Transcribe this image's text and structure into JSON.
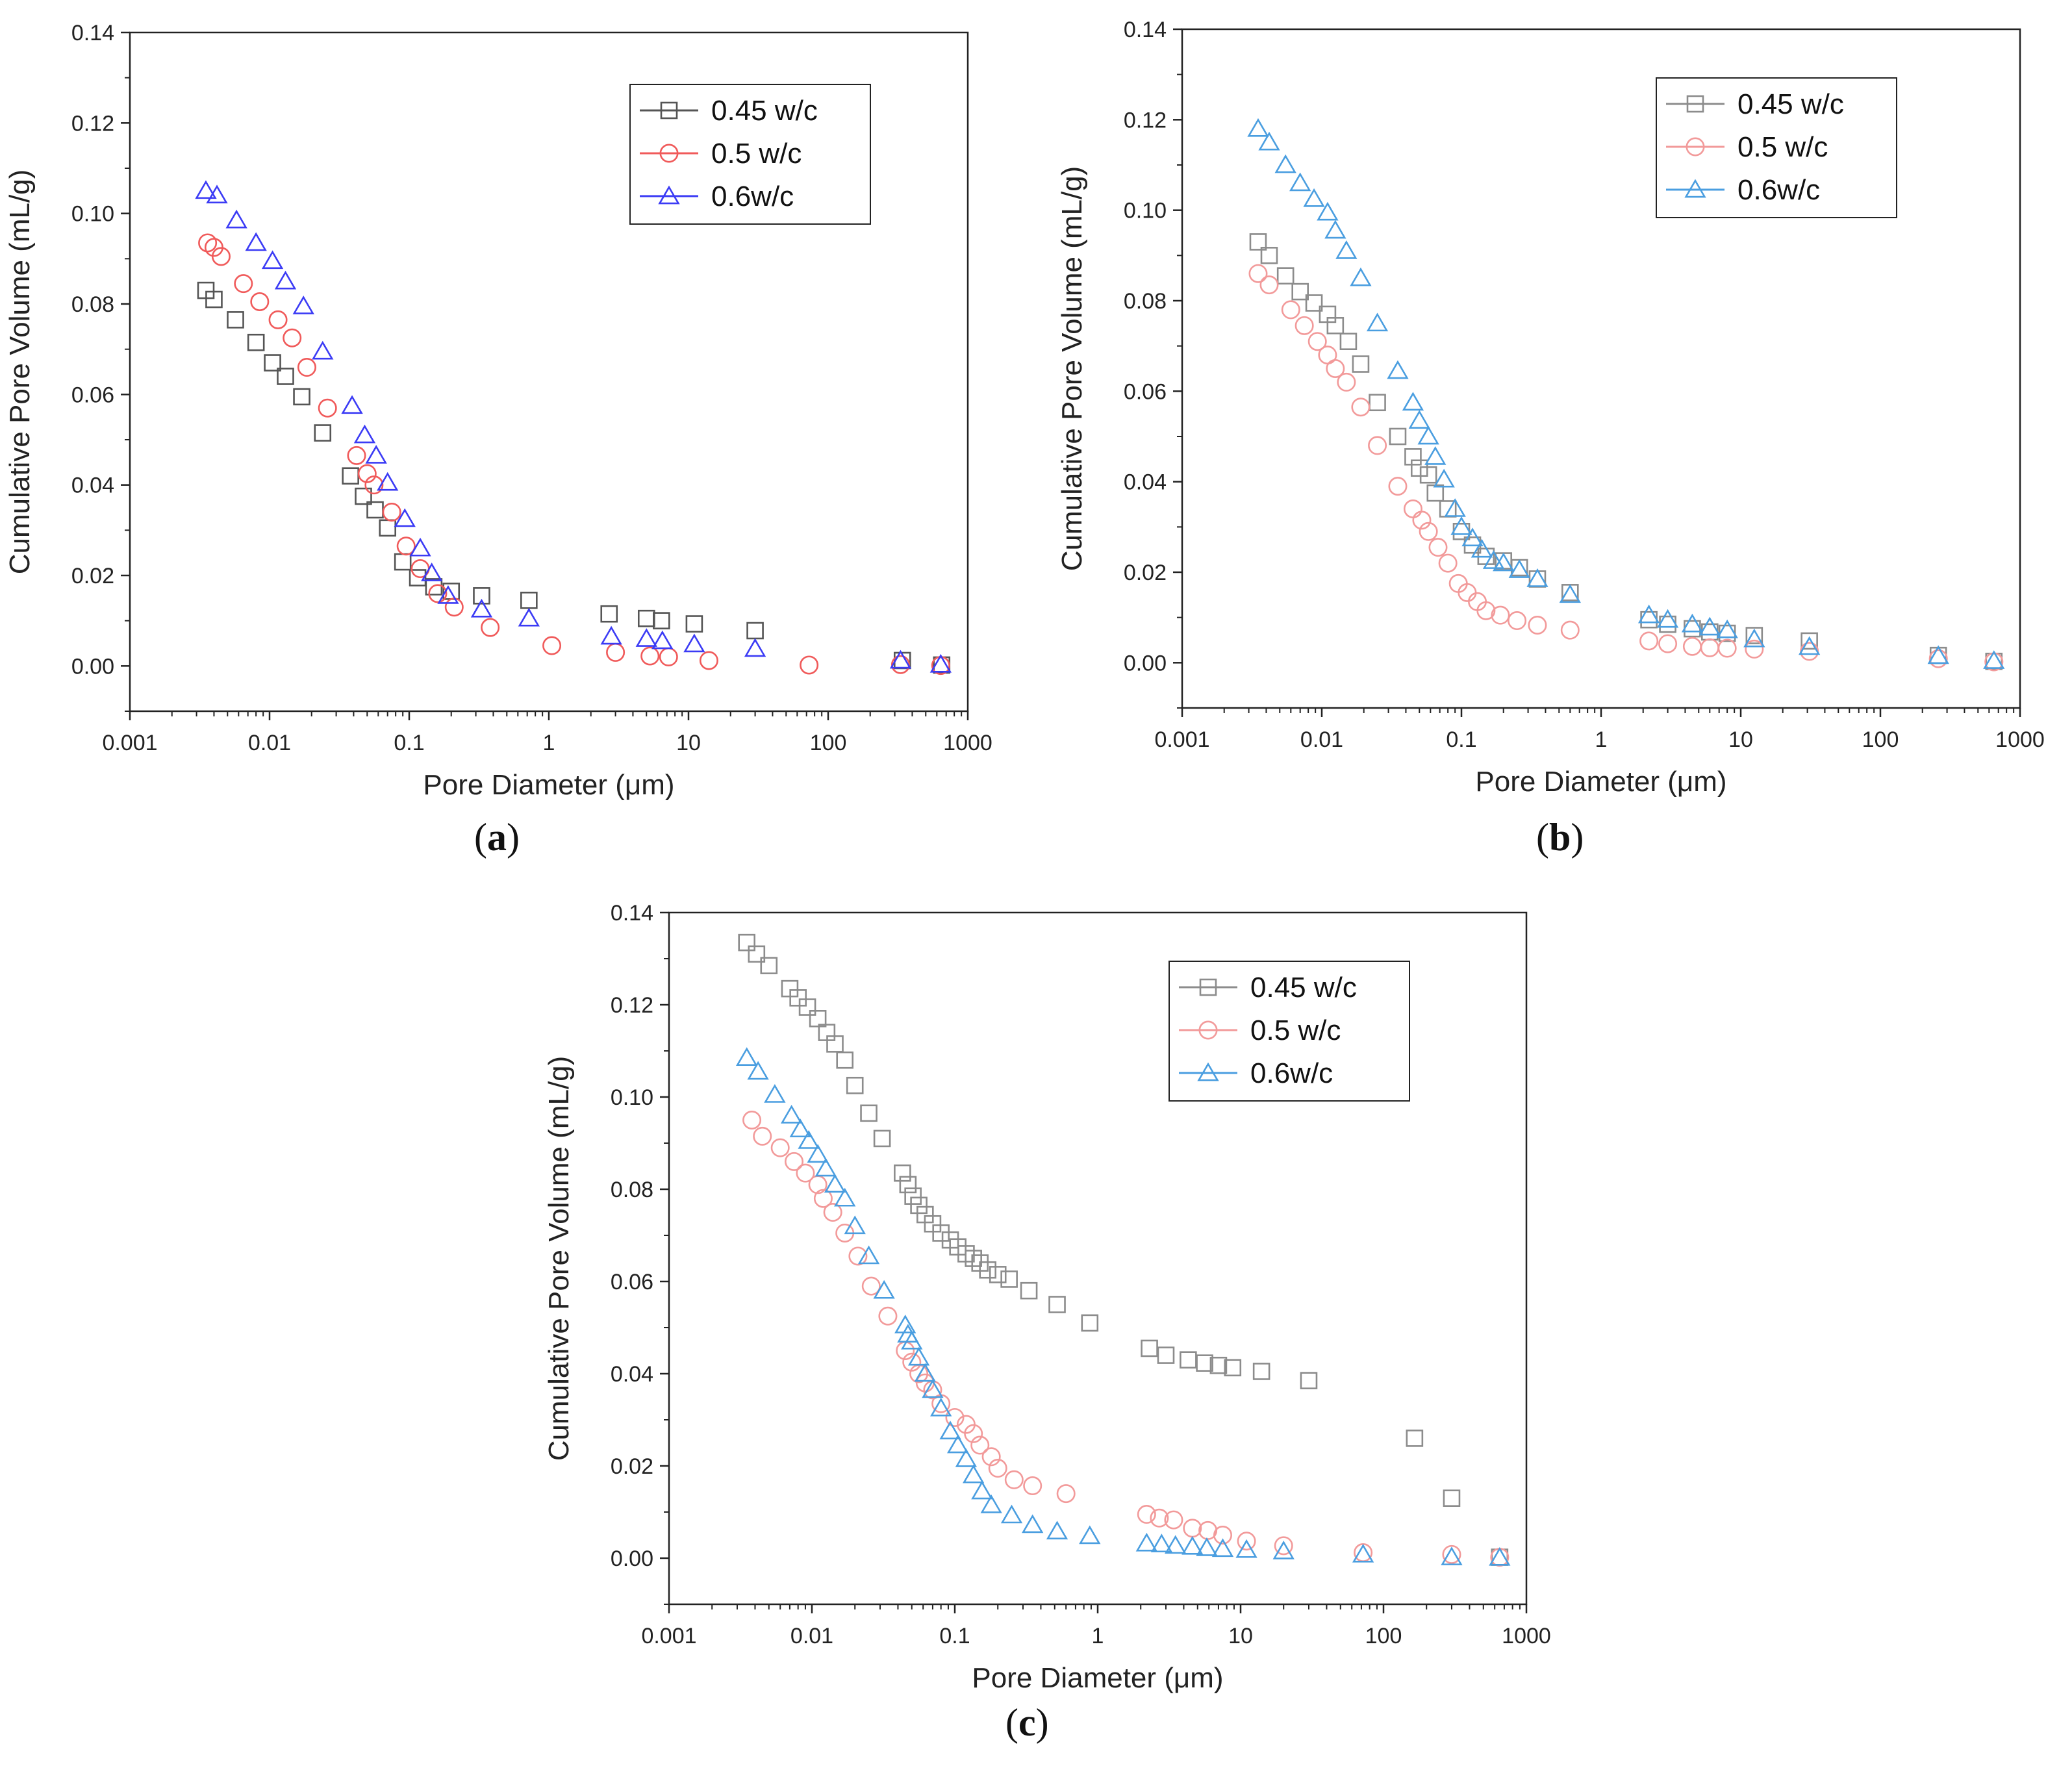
{
  "chart_data": [
    {
      "id": "a",
      "type": "scatter",
      "caption": "(a)",
      "caption_open": "(",
      "caption_letter": "a",
      "caption_close": ")",
      "xlabel": "Pore Diameter (μm)",
      "ylabel": "Cumulative Pore Volume (mL/g)",
      "xscale": "log",
      "xlim": [
        0.001,
        1000
      ],
      "ylim": [
        -0.01,
        0.14
      ],
      "xticks": [
        0.001,
        0.01,
        0.1,
        1,
        10,
        100,
        1000
      ],
      "xtick_labels": [
        "0.001",
        "0.01",
        "0.1",
        "1",
        "10",
        "100",
        "1000"
      ],
      "yticks": [
        0,
        0.02,
        0.04,
        0.06,
        0.08,
        0.1,
        0.12,
        0.14
      ],
      "ytick_labels": [
        "0.00",
        "0.02",
        "0.04",
        "0.06",
        "0.08",
        "0.10",
        "0.12",
        "0.14"
      ],
      "legend_position": "top-right",
      "series": [
        {
          "name": "0.45 w/c",
          "marker": "square",
          "color": "#555555",
          "x": [
            0.0035,
            0.004,
            0.0057,
            0.008,
            0.0105,
            0.013,
            0.017,
            0.024,
            0.038,
            0.047,
            0.057,
            0.07,
            0.09,
            0.115,
            0.15,
            0.2,
            0.33,
            0.72,
            2.7,
            5.0,
            6.4,
            11,
            30,
            340,
            650
          ],
          "y": [
            0.083,
            0.081,
            0.0765,
            0.0715,
            0.067,
            0.064,
            0.0595,
            0.0515,
            0.042,
            0.0375,
            0.0345,
            0.0305,
            0.023,
            0.0195,
            0.0175,
            0.0165,
            0.0155,
            0.0145,
            0.0115,
            0.0105,
            0.01,
            0.0093,
            0.0078,
            0.0012,
            0.0002
          ]
        },
        {
          "name": "0.5 w/c",
          "marker": "circle",
          "color": "#f05a5a",
          "x": [
            0.0036,
            0.004,
            0.0045,
            0.0065,
            0.0085,
            0.0115,
            0.0145,
            0.0185,
            0.026,
            0.042,
            0.05,
            0.056,
            0.075,
            0.095,
            0.12,
            0.16,
            0.21,
            0.38,
            1.05,
            3.0,
            5.3,
            7.2,
            14,
            73,
            330,
            640
          ],
          "y": [
            0.0935,
            0.0925,
            0.0905,
            0.0845,
            0.0805,
            0.0765,
            0.0725,
            0.066,
            0.057,
            0.0465,
            0.0425,
            0.04,
            0.034,
            0.0265,
            0.0215,
            0.016,
            0.013,
            0.0085,
            0.0045,
            0.003,
            0.0022,
            0.002,
            0.0012,
            0.0002,
            0.0003,
            0.0001
          ]
        },
        {
          "name": "0.6w/c",
          "marker": "triangle",
          "color": "#3b3bf5",
          "x": [
            0.0035,
            0.0042,
            0.0058,
            0.008,
            0.0105,
            0.013,
            0.0175,
            0.024,
            0.039,
            0.048,
            0.058,
            0.07,
            0.093,
            0.12,
            0.145,
            0.19,
            0.33,
            0.72,
            2.8,
            5.0,
            6.5,
            11,
            30,
            330,
            640
          ],
          "y": [
            0.105,
            0.104,
            0.0985,
            0.0935,
            0.0895,
            0.085,
            0.0795,
            0.0695,
            0.0575,
            0.051,
            0.0465,
            0.0405,
            0.0325,
            0.026,
            0.0205,
            0.0155,
            0.0125,
            0.0105,
            0.0065,
            0.006,
            0.0055,
            0.0048,
            0.0038,
            0.0012,
            0.0003
          ]
        }
      ]
    },
    {
      "id": "b",
      "type": "scatter",
      "caption": "(b)",
      "caption_open": "(",
      "caption_letter": "b",
      "caption_close": ")",
      "xlabel": "Pore Diameter (μm)",
      "ylabel": "Cumulative Pore Volume (mL/g)",
      "xscale": "log",
      "xlim": [
        0.001,
        1000
      ],
      "ylim": [
        -0.01,
        0.14
      ],
      "xticks": [
        0.001,
        0.01,
        0.1,
        1,
        10,
        100,
        1000
      ],
      "xtick_labels": [
        "0.001",
        "0.01",
        "0.1",
        "1",
        "10",
        "100",
        "1000"
      ],
      "yticks": [
        0,
        0.02,
        0.04,
        0.06,
        0.08,
        0.1,
        0.12,
        0.14
      ],
      "ytick_labels": [
        "0.00",
        "0.02",
        "0.04",
        "0.06",
        "0.08",
        "0.10",
        "0.12",
        "0.14"
      ],
      "legend_position": "top-right",
      "series": [
        {
          "name": "0.45 w/c",
          "marker": "square",
          "color": "#8c8c8c",
          "x": [
            0.0035,
            0.0042,
            0.0055,
            0.007,
            0.0088,
            0.011,
            0.0125,
            0.0155,
            0.019,
            0.025,
            0.035,
            0.045,
            0.05,
            0.058,
            0.065,
            0.08,
            0.1,
            0.12,
            0.15,
            0.2,
            0.26,
            0.35,
            0.6,
            2.2,
            3.0,
            4.5,
            6.0,
            8.0,
            12.5,
            31,
            260,
            650
          ],
          "y": [
            0.093,
            0.09,
            0.0855,
            0.082,
            0.0795,
            0.077,
            0.0745,
            0.071,
            0.066,
            0.0575,
            0.05,
            0.0455,
            0.043,
            0.0415,
            0.0375,
            0.034,
            0.029,
            0.026,
            0.0235,
            0.0225,
            0.021,
            0.0185,
            0.0155,
            0.0095,
            0.0085,
            0.0075,
            0.0068,
            0.0065,
            0.006,
            0.0048,
            0.0016,
            0.0003
          ]
        },
        {
          "name": "0.5 w/c",
          "marker": "circle",
          "color": "#f29a9a",
          "x": [
            0.0035,
            0.0042,
            0.006,
            0.0075,
            0.0093,
            0.011,
            0.0125,
            0.015,
            0.019,
            0.025,
            0.035,
            0.045,
            0.052,
            0.058,
            0.068,
            0.08,
            0.095,
            0.11,
            0.13,
            0.15,
            0.19,
            0.25,
            0.35,
            0.6,
            2.2,
            3.0,
            4.5,
            6.0,
            8.0,
            12.5,
            31,
            260,
            650
          ],
          "y": [
            0.086,
            0.0835,
            0.078,
            0.0745,
            0.071,
            0.068,
            0.065,
            0.062,
            0.0565,
            0.048,
            0.039,
            0.034,
            0.0315,
            0.029,
            0.0255,
            0.022,
            0.0175,
            0.0155,
            0.0135,
            0.0115,
            0.0105,
            0.0093,
            0.0083,
            0.0072,
            0.0048,
            0.0042,
            0.0036,
            0.0033,
            0.0032,
            0.003,
            0.0025,
            0.0009,
            0.0002
          ]
        },
        {
          "name": "0.6w/c",
          "marker": "triangle",
          "color": "#4a9ee0",
          "x": [
            0.0035,
            0.0042,
            0.0055,
            0.007,
            0.0088,
            0.011,
            0.0125,
            0.015,
            0.019,
            0.025,
            0.035,
            0.045,
            0.05,
            0.058,
            0.065,
            0.075,
            0.09,
            0.1,
            0.12,
            0.14,
            0.17,
            0.2,
            0.26,
            0.35,
            0.6,
            2.2,
            3.0,
            4.5,
            6.0,
            8.0,
            12.5,
            31,
            260,
            650
          ],
          "y": [
            0.118,
            0.115,
            0.11,
            0.106,
            0.1025,
            0.0995,
            0.0955,
            0.091,
            0.085,
            0.075,
            0.0645,
            0.0575,
            0.0535,
            0.05,
            0.0455,
            0.0405,
            0.034,
            0.03,
            0.0275,
            0.025,
            0.0225,
            0.022,
            0.0205,
            0.0185,
            0.015,
            0.0105,
            0.0095,
            0.0085,
            0.0078,
            0.0072,
            0.0052,
            0.0035,
            0.0015,
            0.0004
          ]
        }
      ]
    },
    {
      "id": "c",
      "type": "scatter",
      "caption": "(c)",
      "caption_open": "(",
      "caption_letter": "c",
      "caption_close": ")",
      "xlabel": "Pore Diameter (μm)",
      "ylabel": "Cumulative Pore Volume (mL/g)",
      "xscale": "log",
      "xlim": [
        0.001,
        1000
      ],
      "ylim": [
        -0.01,
        0.14
      ],
      "xticks": [
        0.001,
        0.01,
        0.1,
        1,
        10,
        100,
        1000
      ],
      "xtick_labels": [
        "0.001",
        "0.01",
        "0.1",
        "1",
        "10",
        "100",
        "1000"
      ],
      "yticks": [
        0,
        0.02,
        0.04,
        0.06,
        0.08,
        0.1,
        0.12,
        0.14
      ],
      "ytick_labels": [
        "0.00",
        "0.02",
        "0.04",
        "0.06",
        "0.08",
        "0.10",
        "0.12",
        "0.14"
      ],
      "legend_position": "top-right",
      "series": [
        {
          "name": "0.45 w/c",
          "marker": "square",
          "color": "#8c8c8c",
          "x": [
            0.0035,
            0.0041,
            0.005,
            0.007,
            0.008,
            0.0093,
            0.011,
            0.0127,
            0.0145,
            0.017,
            0.02,
            0.025,
            0.031,
            0.043,
            0.047,
            0.051,
            0.056,
            0.062,
            0.07,
            0.08,
            0.093,
            0.105,
            0.12,
            0.135,
            0.15,
            0.17,
            0.2,
            0.24,
            0.33,
            0.52,
            0.88,
            2.3,
            3.0,
            4.3,
            5.6,
            7.0,
            8.8,
            14,
            30,
            165,
            300,
            650
          ],
          "y": [
            0.1335,
            0.131,
            0.1285,
            0.1235,
            0.1215,
            0.1195,
            0.117,
            0.114,
            0.1115,
            0.108,
            0.1025,
            0.0965,
            0.091,
            0.0835,
            0.081,
            0.0785,
            0.0765,
            0.0745,
            0.0725,
            0.0705,
            0.069,
            0.0675,
            0.066,
            0.065,
            0.064,
            0.0625,
            0.0615,
            0.0605,
            0.058,
            0.055,
            0.051,
            0.0455,
            0.044,
            0.043,
            0.0423,
            0.0418,
            0.0413,
            0.0405,
            0.0385,
            0.026,
            0.013,
            0.0002
          ]
        },
        {
          "name": "0.5 w/c",
          "marker": "circle",
          "color": "#f29a9a",
          "x": [
            0.0038,
            0.0045,
            0.006,
            0.0075,
            0.009,
            0.011,
            0.012,
            0.014,
            0.017,
            0.021,
            0.026,
            0.034,
            0.045,
            0.05,
            0.056,
            0.062,
            0.07,
            0.08,
            0.1,
            0.12,
            0.135,
            0.15,
            0.18,
            0.2,
            0.26,
            0.35,
            0.6,
            2.2,
            2.7,
            3.4,
            4.6,
            5.9,
            7.5,
            11,
            20,
            72,
            300,
            650
          ],
          "y": [
            0.095,
            0.0915,
            0.089,
            0.086,
            0.0835,
            0.081,
            0.078,
            0.075,
            0.0705,
            0.0655,
            0.059,
            0.0525,
            0.045,
            0.0425,
            0.04,
            0.038,
            0.0365,
            0.0335,
            0.0305,
            0.029,
            0.027,
            0.0245,
            0.022,
            0.0195,
            0.017,
            0.0157,
            0.014,
            0.0095,
            0.0087,
            0.0083,
            0.0065,
            0.006,
            0.005,
            0.0037,
            0.0027,
            0.0012,
            0.0008,
            0.0002
          ]
        },
        {
          "name": "0.6w/c",
          "marker": "triangle",
          "color": "#4a9ee0",
          "x": [
            0.0035,
            0.0042,
            0.0055,
            0.0072,
            0.0083,
            0.0095,
            0.011,
            0.0125,
            0.0145,
            0.017,
            0.02,
            0.025,
            0.032,
            0.045,
            0.047,
            0.05,
            0.056,
            0.062,
            0.07,
            0.08,
            0.093,
            0.105,
            0.12,
            0.135,
            0.155,
            0.18,
            0.25,
            0.35,
            0.52,
            0.88,
            2.2,
            2.8,
            3.5,
            4.6,
            5.8,
            7.5,
            11,
            20,
            72,
            300,
            650
          ],
          "y": [
            0.1085,
            0.1055,
            0.1005,
            0.096,
            0.093,
            0.0905,
            0.0875,
            0.0845,
            0.081,
            0.078,
            0.072,
            0.0655,
            0.058,
            0.0505,
            0.0485,
            0.047,
            0.0435,
            0.04,
            0.0365,
            0.0325,
            0.0275,
            0.0245,
            0.0215,
            0.018,
            0.0145,
            0.0115,
            0.0093,
            0.0072,
            0.0058,
            0.0048,
            0.0032,
            0.003,
            0.0027,
            0.0025,
            0.0022,
            0.002,
            0.0018,
            0.0015,
            0.0008,
            0.0002,
            0.0001
          ]
        }
      ]
    }
  ]
}
